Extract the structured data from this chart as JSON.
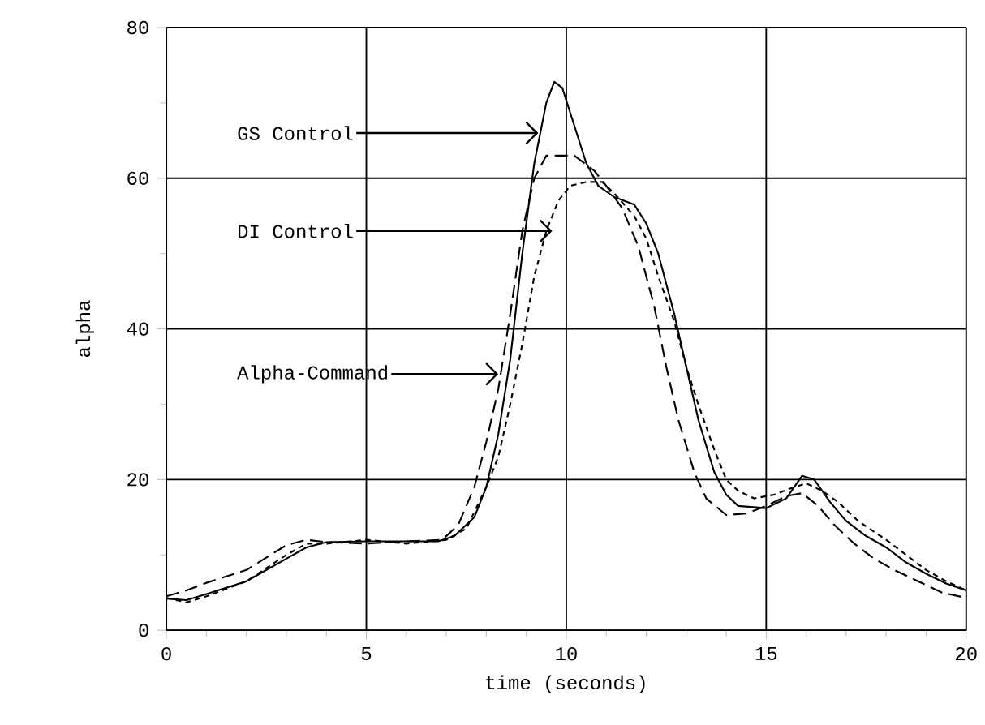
{
  "chart_data": {
    "type": "line",
    "xlabel": "time (seconds)",
    "ylabel": "alpha",
    "xlim": [
      0,
      20
    ],
    "ylim": [
      0,
      80
    ],
    "xticks": [
      0,
      5,
      10,
      15,
      20
    ],
    "yticks": [
      0,
      20,
      40,
      60,
      80
    ],
    "grid": true,
    "marker": "none",
    "series": [
      {
        "color": "#000000",
        "line_style": "solid",
        "x": [
          0,
          0.5,
          1,
          2,
          3,
          3.5,
          4,
          5,
          6,
          6.8,
          7.2,
          7.7,
          8,
          8.3,
          8.6,
          8.9,
          9.2,
          9.5,
          9.7,
          9.9,
          10.2,
          10.5,
          10.8,
          11.2,
          11.7,
          12,
          12.3,
          12.7,
          13,
          13.3,
          13.7,
          14,
          14.3,
          15,
          15.5,
          15.9,
          16.2,
          16.6,
          17,
          17.5,
          18,
          18.5,
          19,
          19.5,
          20
        ],
        "values": [
          4.2,
          4,
          4.8,
          6.5,
          9.5,
          11,
          11.7,
          11.8,
          11.8,
          11.8,
          12.5,
          15,
          19,
          26,
          36,
          50,
          62,
          70,
          72.8,
          72,
          67,
          62,
          59,
          57.5,
          56.5,
          54,
          50,
          42,
          35,
          28,
          21,
          18,
          16.5,
          16.2,
          17.5,
          20.5,
          20,
          17,
          14.5,
          12.5,
          11,
          9,
          7.5,
          6.2,
          5.3
        ]
      },
      {
        "color": "#000000",
        "line_style": "dashed",
        "x": [
          0,
          0.5,
          1,
          2,
          3,
          3.5,
          4,
          5,
          6,
          6.9,
          7.3,
          7.7,
          8,
          8.3,
          8.6,
          8.9,
          9.2,
          9.5,
          9.8,
          10.2,
          10.7,
          11,
          11.4,
          11.8,
          12.2,
          12.5,
          12.8,
          13.2,
          13.5,
          14,
          14.5,
          15,
          15.5,
          15.9,
          16.3,
          16.7,
          17.2,
          17.7,
          18.2,
          18.8,
          19.4,
          20
        ],
        "values": [
          4.5,
          5.3,
          6.3,
          8,
          11.3,
          12,
          11.7,
          11.5,
          11.8,
          12,
          14,
          19,
          25,
          32,
          42,
          53,
          60,
          63,
          63,
          63,
          61,
          59,
          56,
          51,
          43,
          35,
          28,
          21,
          17.5,
          15.3,
          15.5,
          16.5,
          17.8,
          18.2,
          16.5,
          14,
          11.5,
          9.5,
          8,
          6.5,
          5,
          4.3
        ]
      },
      {
        "color": "#000000",
        "line_style": "dotted",
        "x": [
          0,
          0.5,
          1,
          2,
          3,
          3.5,
          4,
          5,
          6,
          7,
          7.5,
          8,
          8.3,
          8.6,
          8.9,
          9.2,
          9.5,
          9.8,
          10.1,
          10.5,
          10.9,
          11.2,
          11.7,
          12,
          12.3,
          12.7,
          13,
          13.3,
          13.7,
          14,
          14.3,
          14.7,
          15.2,
          15.6,
          16,
          16.4,
          16.8,
          17.3,
          18,
          18.5,
          19,
          19.5,
          20
        ],
        "values": [
          4.3,
          3.7,
          4.5,
          6.5,
          10,
          11.5,
          11.5,
          12,
          11.5,
          12,
          13.5,
          19,
          23,
          30,
          38,
          47,
          53,
          57,
          59,
          59.5,
          59.5,
          58,
          55,
          52,
          47,
          41,
          35,
          30,
          24,
          20,
          18.5,
          17.5,
          18,
          18.8,
          19.5,
          18.5,
          17,
          14.5,
          12,
          10,
          8,
          6.5,
          5.3
        ]
      }
    ],
    "annotations": [
      {
        "text": "GS Control",
        "x": 9.3,
        "y": 66
      },
      {
        "text": "DI Control",
        "x": 9.65,
        "y": 53
      },
      {
        "text": "Alpha-Command",
        "x": 8.3,
        "y": 34
      }
    ]
  }
}
